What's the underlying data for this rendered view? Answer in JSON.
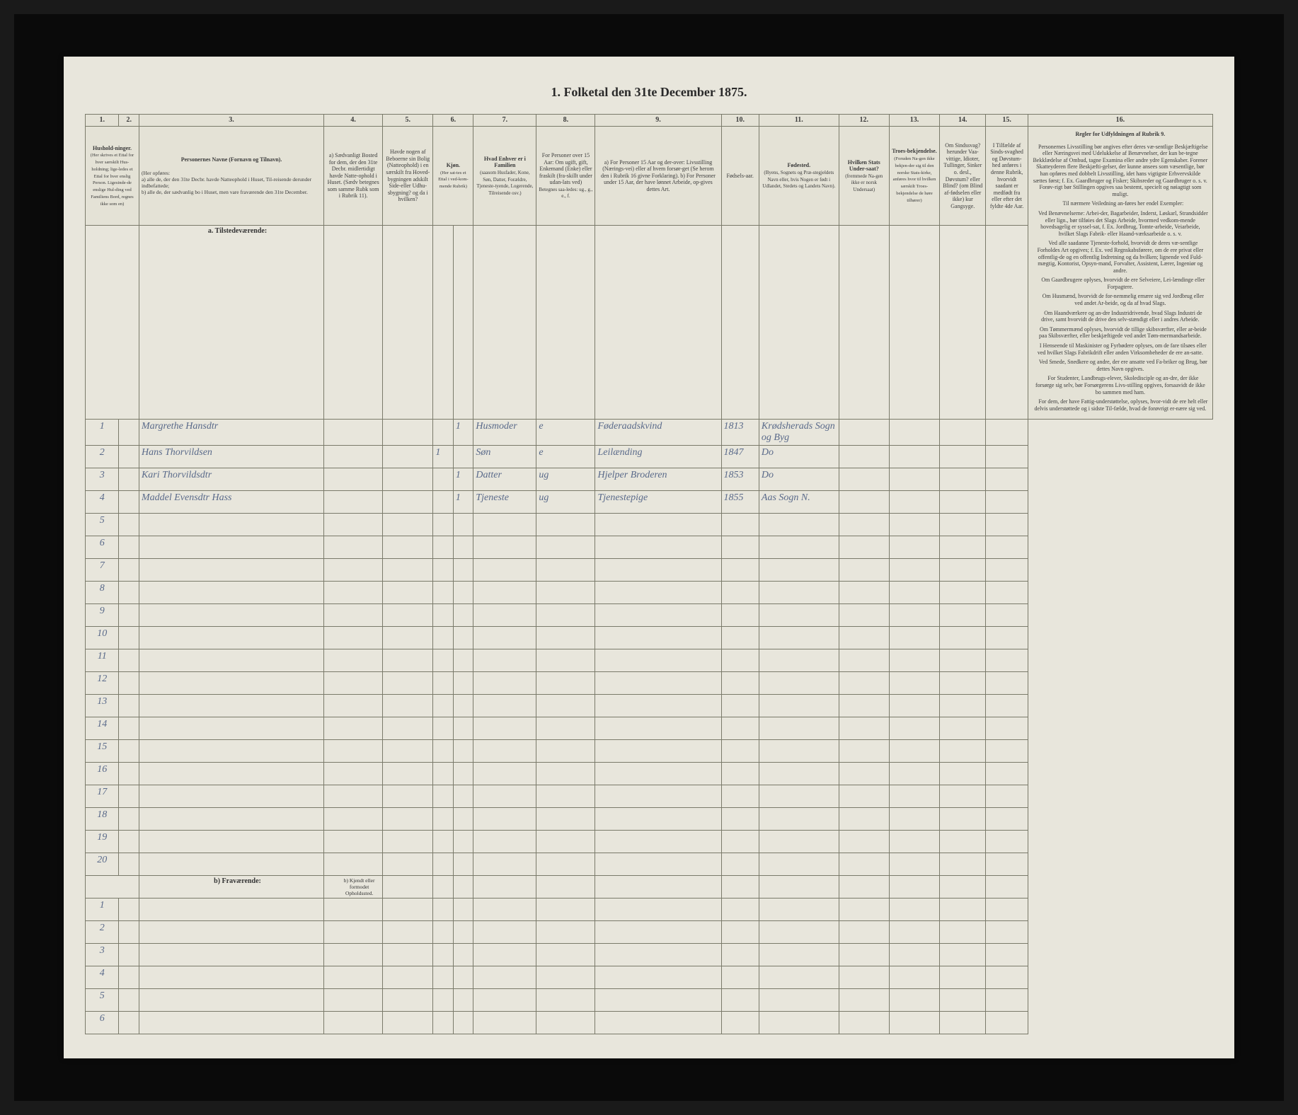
{
  "title": "1. Folketal den 31te December 1875.",
  "colNumbers": [
    "1.",
    "2.",
    "3.",
    "4.",
    "5.",
    "6.",
    "7.",
    "8.",
    "9.",
    "10.",
    "11.",
    "12.",
    "13.",
    "14.",
    "15.",
    "16."
  ],
  "headers": {
    "c1": "Hushold-ninger.",
    "c1sub": "(Her skrives et Ettal for hver særskilt Hus-holdning; lige-ledes et Ettal for hver enslig Person. Ligesinde-de enslige Hul-ding ved Familiens Bord, regnes ikke som en)",
    "c3": "Personernes Navne (Fornavn og Tilnavn).",
    "c3sub": "(Her opføres:\na) alle de, der den 31te Decbr. havde Natteophold i Huset, Til-reisende derunder indbefattede;\nb) alle de, der sædvanlig bo i Huset, men vare fraværende den 31te December.",
    "c4": "a) Sædvanligt Bosted for dem, der den 31te Decbr. midlertidigt havde Natte-ophold i Huset. (Sædv betegnes som samme Rubk som i Rubrik 11).",
    "c5": "Havde nogen af Beboerne sin Bolig (Natteophold) i en særskilt fra Hoved-bygningen adskilt Side-eller Udhu-sbygning? og da i hvilken?",
    "c6": "Kjøn.",
    "c6sub": "(Her sat-tes et Ettal i ved-kom-mende Rubrik)",
    "c7": "Hvad Enhver er i Familien",
    "c7sub": "(saasom Husfader, Kone, Søn, Datter, Forældre, Tjeneste-tyende, Logerende, Tilreisende osv.)",
    "c8": "For Personer over 15 Aar:\nOm ugift, gift, Enkemand (Enke) eller fraskilt (fra-skillt under udan-lats ved)",
    "c8sub": "Betegnes saa-ledes: ug., g., e., f.",
    "c9": "a) For Personer 15 Aar og der-over: Livsstilling (Nærings-vei) eller af hvem forsør-get (Se herom den i Rubrik 16 givne Forklaring).\nb) For Personer under 15 Aar, der have lønnet Arbeide, op-gives dettes Art.",
    "c10": "Fødsels-aar.",
    "c11": "Fødested.",
    "c11sub": "(Byens, Sognets og Præ-stegjeldets Navn eller, hvis Nogen er født i Udlandet, Stedets og Landets Navn).",
    "c12": "Hvilken Stats Under-saat?",
    "c12sub": "(fremmede Na-gen ikke er norsk Undersaat)",
    "c13": "Troes-bekjendelse.",
    "c13sub": "(Foruden Na-gen ikke bekjen-der sig til den norske Stats-kirke, anføres hvor til hvilken særskilt Troes-bekjendelse de høre tilhører)",
    "c14": "Om Sindssvag? herunder Vaa-vittige, Idioter, Tullinger, Sinker o. desl., Døvstum? eller Blind? (om Blind af-fødselen eller ikke) kur Gangsyge.",
    "c15": "I Tilfælde af Sinds-svaghed og Døvstum-hed anføres i denne Rubrik, hvorvidt saadant er medfødt fra eller efter det fyldte 4de Aar.",
    "c16": "Regler for Udfyldningen af Rubrik 9."
  },
  "sectionA": "a. Tilstedeværende:",
  "sectionB": "b) Fraværende:",
  "sectionBcol4": "b) Kjendt eller formodet Opholdssted.",
  "rows": [
    {
      "num": "1",
      "name": "Margrethe Hansdtr",
      "c6a": "",
      "c6b": "1",
      "c7": "Husmoder",
      "c8": "e",
      "c9": "Føderaadskvind",
      "c10": "1813",
      "c11": "Krødsherads Sogn og Byg"
    },
    {
      "num": "2",
      "name": "Hans Thorvildsen",
      "c6a": "1",
      "c6b": "",
      "c7": "Søn",
      "c8": "e",
      "c9": "Leilænding",
      "c10": "1847",
      "c11": "Do"
    },
    {
      "num": "3",
      "name": "Kari Thorvildsdtr",
      "c6a": "",
      "c6b": "1",
      "c7": "Datter",
      "c8": "ug",
      "c9": "Hjelper Broderen",
      "c10": "1853",
      "c11": "Do"
    },
    {
      "num": "4",
      "name": "Maddel Evensdtr Hass",
      "c6a": "",
      "c6b": "1",
      "c7": "Tjeneste",
      "c8": "ug",
      "c9": "Tjenestepige",
      "c10": "1855",
      "c11": "Aas Sogn N."
    }
  ],
  "emptyRowsA": [
    "5",
    "6",
    "7",
    "8",
    "9",
    "10",
    "11",
    "12",
    "13",
    "14",
    "15",
    "16",
    "17",
    "18",
    "19",
    "20"
  ],
  "emptyRowsB": [
    "1",
    "2",
    "3",
    "4",
    "5",
    "6"
  ],
  "rulesText": [
    "Personernes Livsstilling bør angives efter deres væ-sentlige Beskjæftigelse eller Næringsvei med Udelukkelse af Benævnelser, der kun be-tegne Bekklædelse af Ombud, tagne Examina eller andre ydre Egenskaber. Forener Skatteyderen flere Beskjæfti-gelser, der kunne ansees som væsentlige, bør han opføres med dobbelt Livsstilling, idet hans vigtigste Erhvervskilde sættes først; f. Ex. Gaardbruger og Fisker; Skibsreder og Gaardbruger o. s. v. Forøv-rigt bør Stillingen opgives saa bestemt, specielt og nøiagtigt som muligt.",
    "Til nærmere Veiledning an-føres her endel Exempler:",
    "Ved Benævnelserne: Arbei-der, Bagarbeider, Inderst, Løskarl, Strandsidder eller lign., bør tilføies det Slags Arbeide, hvormed vedkom-mende hovedsagelig er syssel-sat, f. Ex. Jordbrug, Tomte-arbeide, Veiarbeide, hvilket Slags Fabrik- eller Haand-værksarbeide o. s. v.",
    "Ved alle saadanne Tjeneste-forhold, hvorvidt de deres væ-sentlige Forholdes Art opgives; f. Ex. ved Regnskabsførere, om de ere privat eller offentlig-de og en offentlig Indretning og da hvilken; lignende ved Fuld-mægtig, Kontorist, Opsyn-mand, Forvalter, Assistent, Lærer, Ingeniør og andre.",
    "Om Gaardbrugere oplyses, hvorvidt de ere Selveiere, Lei-lændinge eller Forpagtere.",
    "Om Husmænd, hvorvidt de for-nemmelig ernære sig ved Jordbrug eller ved andet Ar-beide, og da af hvad Slags.",
    "Om Haandværkere og an-dre Industridrivende, hvad Slags Industri de drive, samt hvorvidt de drive den selv-stændigt eller i andres Arbeide.",
    "Om Tømmermænd oplyses, hvorvidt de tillige skibsværfter, eller ar-beide paa Skibsværfter, eller beskjæftigede ved andet Tøm-mermandsarbeide.",
    "I Henseende til Maskinister og Fyrbødere oplyses, om de fare tilsøes eller ved hvilket Slags Fabrikdrift eller anden Virksombeheder de ere an-satte.",
    "Ved Smede, Snedkere og andre, der ere ansatte ved Fa-briker og Brug, bør dettes Navn opgives.",
    "For Studenter, Landbrugs-elever, Skoledisciple og an-dre, der ikke forsørge sig selv, bør Forsørgerens Livs-stilling opgives, forsaavidt de ikke bo sammen med ham.",
    "For dem, der have Fattig-understøttelse, oplyses, hvor-vidt de ere helt eller delvis understøttede og i sidste Til-fælde, hvad de forøvrigt er-nære sig ved."
  ]
}
